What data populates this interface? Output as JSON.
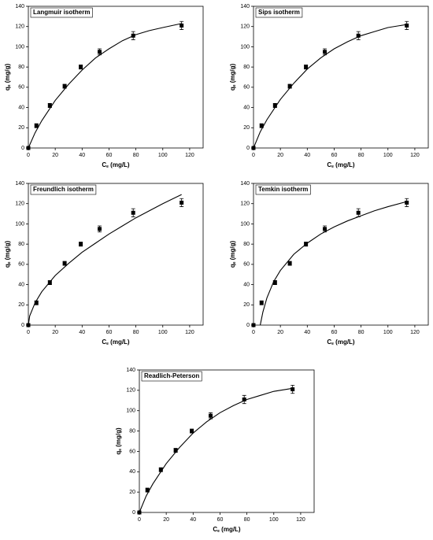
{
  "chart_data": [
    {
      "type": "scatter",
      "title": "Langmuir isotherm",
      "x_label": [
        "C",
        "e",
        " (mg/L)"
      ],
      "y_label": [
        "q",
        "e",
        " (mg/g)"
      ],
      "xlim": [
        0,
        130
      ],
      "ylim": [
        0,
        140
      ],
      "xticks": [
        0,
        20,
        40,
        60,
        80,
        100,
        120
      ],
      "yticks": [
        0,
        20,
        40,
        60,
        80,
        100,
        120,
        140
      ],
      "color": "#000000",
      "points": {
        "x": [
          0,
          6,
          16,
          27,
          39,
          53,
          78,
          114
        ],
        "y": [
          0,
          22,
          42,
          61,
          80,
          95,
          111,
          121
        ],
        "error": [
          0,
          2,
          2,
          2,
          2,
          3,
          4,
          4
        ]
      },
      "fit": {
        "x": [
          0,
          5,
          10,
          20,
          30,
          40,
          50,
          60,
          70,
          80,
          90,
          100,
          114
        ],
        "y": [
          0,
          15,
          27,
          47,
          63,
          77,
          89,
          98,
          106,
          112,
          116,
          119,
          123
        ]
      }
    },
    {
      "type": "scatter",
      "title": "Sips isotherm",
      "x_label": [
        "C",
        "e",
        " (mg/L)"
      ],
      "y_label": [
        "q",
        "e",
        " (mg/g)"
      ],
      "xlim": [
        0,
        130
      ],
      "ylim": [
        0,
        140
      ],
      "xticks": [
        0,
        20,
        40,
        60,
        80,
        100,
        120
      ],
      "yticks": [
        0,
        20,
        40,
        60,
        80,
        100,
        120,
        140
      ],
      "color": "#000000",
      "points": {
        "x": [
          0,
          6,
          16,
          27,
          39,
          53,
          78,
          114
        ],
        "y": [
          0,
          22,
          42,
          61,
          80,
          95,
          111,
          121
        ],
        "error": [
          0,
          2,
          2,
          2,
          2,
          3,
          4,
          4
        ]
      },
      "fit": {
        "x": [
          0,
          5,
          10,
          20,
          30,
          40,
          50,
          60,
          70,
          80,
          90,
          100,
          114
        ],
        "y": [
          0,
          16,
          28,
          48,
          64,
          78,
          89,
          98,
          105,
          111,
          115,
          119,
          122
        ]
      }
    },
    {
      "type": "scatter",
      "title": "Freundlich isotherm",
      "x_label": [
        "C",
        "e",
        " (mg/L)"
      ],
      "y_label": [
        "q",
        "e",
        " (mg/g)"
      ],
      "xlim": [
        0,
        130
      ],
      "ylim": [
        0,
        140
      ],
      "xticks": [
        0,
        20,
        40,
        60,
        80,
        100,
        120
      ],
      "yticks": [
        0,
        20,
        40,
        60,
        80,
        100,
        120,
        140
      ],
      "color": "#000000",
      "points": {
        "x": [
          0,
          6,
          16,
          27,
          39,
          53,
          78,
          114
        ],
        "y": [
          0,
          22,
          42,
          61,
          80,
          95,
          111,
          121
        ],
        "error": [
          0,
          2,
          2,
          2,
          2,
          3,
          4,
          4
        ]
      },
      "fit": {
        "x": [
          0,
          1,
          5,
          10,
          20,
          30,
          40,
          50,
          60,
          70,
          80,
          90,
          100,
          114
        ],
        "y": [
          0,
          9,
          22,
          33,
          49,
          61,
          72,
          81,
          90,
          98,
          106,
          113,
          120,
          129
        ]
      }
    },
    {
      "type": "scatter",
      "title": "Temkin isotherm",
      "x_label": [
        "C",
        "e",
        " (mg/L)"
      ],
      "y_label": [
        "q",
        "e",
        " (mg/g)"
      ],
      "xlim": [
        0,
        130
      ],
      "ylim": [
        0,
        140
      ],
      "xticks": [
        0,
        20,
        40,
        60,
        80,
        100,
        120
      ],
      "yticks": [
        0,
        20,
        40,
        60,
        80,
        100,
        120,
        140
      ],
      "color": "#000000",
      "points": {
        "x": [
          0,
          6,
          16,
          27,
          39,
          53,
          78,
          114
        ],
        "y": [
          0,
          22,
          42,
          61,
          80,
          95,
          111,
          121
        ],
        "error": [
          0,
          2,
          2,
          2,
          2,
          3,
          4,
          4
        ]
      },
      "fit": {
        "x": [
          5,
          7,
          10,
          15,
          20,
          30,
          40,
          50,
          60,
          70,
          80,
          90,
          100,
          114
        ],
        "y": [
          0,
          13,
          27,
          43,
          54,
          70,
          81,
          90,
          97,
          103,
          108,
          113,
          117,
          122
        ]
      }
    },
    {
      "type": "scatter",
      "title": "Readlich-Peterson",
      "x_label": [
        "C",
        "e",
        " (mg/L)"
      ],
      "y_label": [
        "q",
        "e",
        " (mg/g)"
      ],
      "xlim": [
        0,
        130
      ],
      "ylim": [
        0,
        140
      ],
      "xticks": [
        0,
        20,
        40,
        60,
        80,
        100,
        120
      ],
      "yticks": [
        0,
        20,
        40,
        60,
        80,
        100,
        120,
        140
      ],
      "color": "#000000",
      "points": {
        "x": [
          0,
          6,
          16,
          27,
          39,
          53,
          78,
          114
        ],
        "y": [
          0,
          22,
          42,
          61,
          80,
          95,
          111,
          121
        ],
        "error": [
          0,
          2,
          2,
          2,
          2,
          3,
          4,
          4
        ]
      },
      "fit": {
        "x": [
          0,
          5,
          10,
          20,
          30,
          40,
          50,
          60,
          70,
          80,
          90,
          100,
          114
        ],
        "y": [
          0,
          16,
          28,
          48,
          64,
          78,
          89,
          98,
          105,
          111,
          115,
          119,
          122
        ]
      }
    }
  ]
}
